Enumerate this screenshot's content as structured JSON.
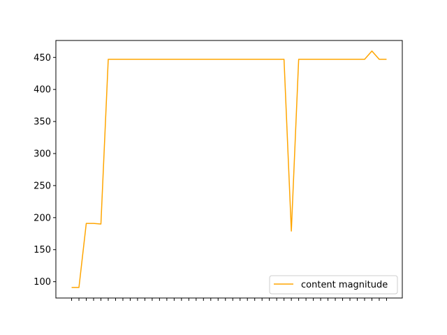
{
  "chart_data": {
    "type": "line",
    "x": [
      0,
      1,
      2,
      3,
      4,
      5,
      6,
      7,
      8,
      9,
      10,
      11,
      12,
      13,
      14,
      15,
      16,
      17,
      18,
      19,
      20,
      21,
      22,
      23,
      24,
      25,
      26,
      27,
      28,
      29,
      30,
      31,
      32,
      33,
      34,
      35,
      36,
      37,
      38,
      39,
      40,
      41,
      42,
      43
    ],
    "series": [
      {
        "name": "content magnitude",
        "color": "#ffa500",
        "values": [
          91,
          91,
          191,
          191,
          190,
          447,
          447,
          447,
          447,
          447,
          447,
          447,
          447,
          447,
          447,
          447,
          447,
          447,
          447,
          447,
          447,
          447,
          447,
          447,
          447,
          447,
          447,
          447,
          447,
          447,
          179,
          447,
          447,
          447,
          447,
          447,
          447,
          447,
          447,
          447,
          447,
          460,
          447,
          447
        ]
      }
    ],
    "yticks": [
      100,
      150,
      200,
      250,
      300,
      350,
      400,
      450
    ],
    "ytick_labels": [
      "100",
      "150",
      "200",
      "250",
      "300",
      "350",
      "400",
      "450"
    ],
    "xtick_labels": [
      "",
      "",
      "",
      "",
      "",
      "",
      "",
      "",
      "",
      "",
      "",
      "",
      "",
      "",
      "",
      "",
      "",
      "",
      "",
      "",
      "",
      "",
      "",
      "",
      "",
      "",
      "",
      "",
      "",
      "",
      "",
      "",
      "",
      "",
      "",
      "",
      "",
      "",
      "",
      "",
      "",
      "",
      "",
      ""
    ],
    "ylim": [
      74.55,
      476.45
    ],
    "xlim": [
      -2.15,
      45.15
    ],
    "grid": false,
    "legend": "lower-right",
    "title": "",
    "xlabel": "",
    "ylabel": ""
  }
}
